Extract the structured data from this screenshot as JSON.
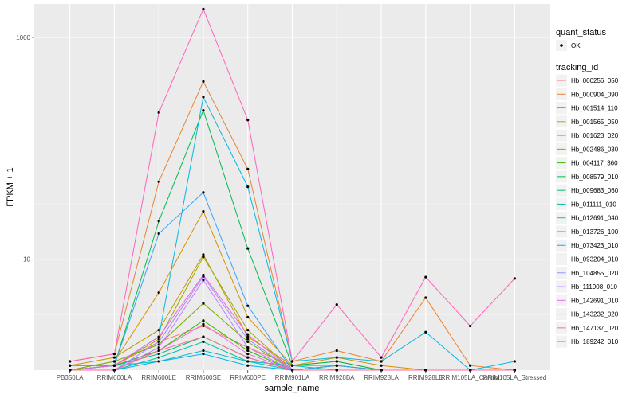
{
  "chart_data": {
    "type": "line",
    "xlabel": "sample_name",
    "ylabel": "FPKM + 1",
    "y_scale": "log10",
    "ylim": [
      1,
      2000
    ],
    "y_ticks": [
      10,
      1000
    ],
    "grid": true,
    "legend_position": "right",
    "categories": [
      "PB350LA",
      "RRIM600LA",
      "RRIM600LE",
      "RRIM600SE",
      "RRIM600PE",
      "RRIM901LA",
      "RRIM928BA",
      "RRIM928LA",
      "RRIM928LE",
      "RRIM105LA_Control",
      "RRIM105LA_Stressed"
    ],
    "quant_status": {
      "title": "quant_status",
      "entries": [
        {
          "label": "OK"
        }
      ]
    },
    "tracking_title": "tracking_id",
    "series": [
      {
        "name": "Hb_000256_050",
        "color": "#F8766D",
        "values": [
          1.1,
          1.1,
          1.8,
          2.5,
          1.6,
          1.1,
          1.1,
          1.0,
          1.0,
          1.0,
          1.0
        ]
      },
      {
        "name": "Hb_000904_090",
        "color": "#EA8331",
        "values": [
          1.2,
          1.4,
          50,
          400,
          65,
          1.2,
          1.5,
          1.2,
          4.5,
          1.1,
          1.0
        ]
      },
      {
        "name": "Hb_001514_110",
        "color": "#D89000",
        "values": [
          1.0,
          1.2,
          5.0,
          27,
          3.0,
          1.1,
          1.3,
          1.1,
          1.0,
          1.0,
          1.0
        ]
      },
      {
        "name": "Hb_001565_050",
        "color": "#C09B00",
        "values": [
          1.1,
          1.3,
          2.3,
          11,
          2.0,
          1.1,
          1.2,
          1.0,
          1.0,
          1.0,
          1.0
        ]
      },
      {
        "name": "Hb_001623_020",
        "color": "#A3A500",
        "values": [
          1.0,
          1.1,
          1.9,
          10.5,
          2.3,
          1.0,
          1.1,
          1.0,
          1.0,
          1.0,
          1.0
        ]
      },
      {
        "name": "Hb_002486_030",
        "color": "#7CAE00",
        "values": [
          1.0,
          1.2,
          1.7,
          4.0,
          1.8,
          1.0,
          1.1,
          1.0,
          1.0,
          1.0,
          1.0
        ]
      },
      {
        "name": "Hb_004117_360",
        "color": "#39B600",
        "values": [
          1.0,
          1.1,
          1.5,
          2.8,
          1.5,
          1.0,
          1.1,
          1.0,
          1.0,
          1.0,
          1.0
        ]
      },
      {
        "name": "Hb_008579_010",
        "color": "#00BB4E",
        "values": [
          1.0,
          1.1,
          22,
          220,
          12.5,
          1.1,
          1.2,
          1.0,
          1.0,
          1.0,
          1.0
        ]
      },
      {
        "name": "Hb_009683_060",
        "color": "#00BF7D",
        "values": [
          1.0,
          1.1,
          1.4,
          2.0,
          1.3,
          1.0,
          1.0,
          1.0,
          1.0,
          1.0,
          1.0
        ]
      },
      {
        "name": "Hb_011111_010",
        "color": "#00C1A3",
        "values": [
          1.0,
          1.0,
          1.3,
          1.8,
          1.2,
          1.0,
          1.0,
          1.0,
          1.0,
          1.0,
          1.0
        ]
      },
      {
        "name": "Hb_012691_040",
        "color": "#00BFC4",
        "values": [
          1.1,
          1.1,
          1.2,
          1.5,
          1.2,
          1.1,
          1.0,
          1.0,
          1.0,
          1.0,
          1.0
        ]
      },
      {
        "name": "Hb_013726_100",
        "color": "#00BAE0",
        "values": [
          1.0,
          1.1,
          2.0,
          290,
          45,
          1.2,
          1.3,
          1.2,
          2.2,
          1.0,
          1.2
        ]
      },
      {
        "name": "Hb_073423_010",
        "color": "#00B0F6",
        "values": [
          1.0,
          1.0,
          1.2,
          1.4,
          1.1,
          1.0,
          1.0,
          1.0,
          1.0,
          1.0,
          1.0
        ]
      },
      {
        "name": "Hb_093204_010",
        "color": "#35A2FF",
        "values": [
          1.0,
          1.1,
          17,
          40,
          3.8,
          1.0,
          1.1,
          1.0,
          1.0,
          1.0,
          1.0
        ]
      },
      {
        "name": "Hb_104855_020",
        "color": "#9590FF",
        "values": [
          1.0,
          1.0,
          1.8,
          7.0,
          1.9,
          1.0,
          1.0,
          1.0,
          1.0,
          1.0,
          1.0
        ]
      },
      {
        "name": "Hb_111908_010",
        "color": "#C77CFF",
        "values": [
          1.0,
          1.0,
          1.6,
          6.5,
          1.6,
          1.0,
          1.0,
          1.0,
          1.0,
          1.0,
          1.0
        ]
      },
      {
        "name": "Hb_142691_010",
        "color": "#E76BF3",
        "values": [
          1.0,
          1.0,
          1.5,
          2.6,
          1.4,
          1.0,
          1.0,
          1.0,
          1.0,
          1.0,
          1.0
        ]
      },
      {
        "name": "Hb_143232_020",
        "color": "#FA62DB",
        "values": [
          1.0,
          1.1,
          2.0,
          7.2,
          2.1,
          1.0,
          1.0,
          1.0,
          1.0,
          1.0,
          1.0
        ]
      },
      {
        "name": "Hb_147137_020",
        "color": "#FF62BC",
        "values": [
          1.2,
          1.4,
          210,
          1800,
          180,
          1.2,
          3.9,
          1.3,
          6.9,
          2.5,
          6.7
        ]
      },
      {
        "name": "Hb_189242_010",
        "color": "#FF6C91",
        "values": [
          1.0,
          1.0,
          1.5,
          2.0,
          1.3,
          1.0,
          1.0,
          1.0,
          1.0,
          1.0,
          1.0
        ]
      }
    ]
  }
}
